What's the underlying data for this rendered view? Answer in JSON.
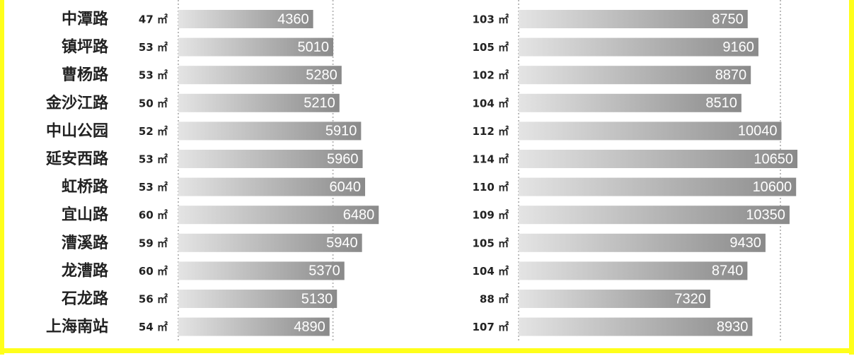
{
  "chart_data": [
    {
      "type": "bar",
      "orientation": "horizontal",
      "categories": [
        "中潭路",
        "镇坪路",
        "曹杨路",
        "金沙江路",
        "中山公园",
        "延安西路",
        "虹桥路",
        "宜山路",
        "漕溪路",
        "龙漕路",
        "石龙路",
        "上海南站"
      ],
      "area_labels": [
        "47 ㎡",
        "53 ㎡",
        "53 ㎡",
        "50 ㎡",
        "52 ㎡",
        "53 ㎡",
        "53 ㎡",
        "60 ㎡",
        "59 ㎡",
        "60 ㎡",
        "56 ㎡",
        "54 ㎡"
      ],
      "values": [
        4360,
        5010,
        5280,
        5210,
        5910,
        5960,
        6040,
        6480,
        5940,
        5370,
        5130,
        4890
      ],
      "xlim": [
        0,
        7000
      ],
      "xticks": [
        0,
        5000
      ],
      "grid": true
    },
    {
      "type": "bar",
      "orientation": "horizontal",
      "area_labels": [
        "103 ㎡",
        "105 ㎡",
        "102 ㎡",
        "104 ㎡",
        "112 ㎡",
        "114 ㎡",
        "110 ㎡",
        "109 ㎡",
        "105 ㎡",
        "104 ㎡",
        "88 ㎡",
        "107 ㎡"
      ],
      "values": [
        8750,
        9160,
        8870,
        8510,
        10040,
        10650,
        10600,
        10350,
        9430,
        8740,
        7320,
        8930
      ],
      "xlim": [
        0,
        12000
      ],
      "xticks": [
        0,
        10000
      ],
      "grid": true
    }
  ]
}
